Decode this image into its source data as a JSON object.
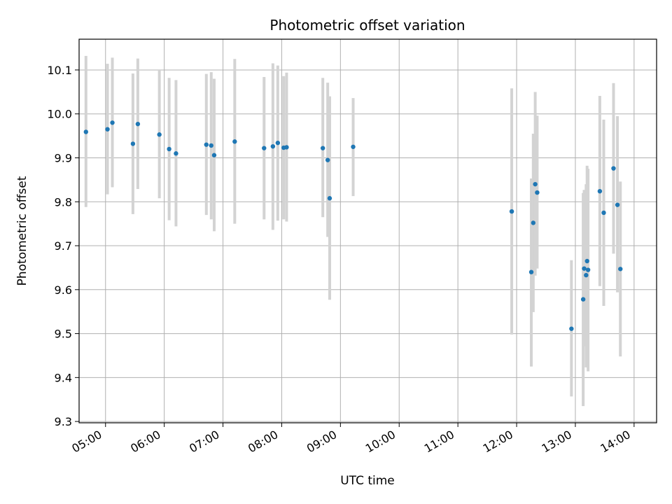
{
  "chart_data": {
    "type": "scatter",
    "title": "Photometric offset variation",
    "xlabel": "UTC time",
    "ylabel": "Photometric offset",
    "xlim": [
      "04:33",
      "14:23"
    ],
    "ylim": [
      9.297,
      10.17
    ],
    "grid": true,
    "x_ticks": [
      "05:00",
      "06:00",
      "07:00",
      "08:00",
      "09:00",
      "10:00",
      "11:00",
      "12:00",
      "13:00",
      "14:00"
    ],
    "y_ticks": [
      "9.3",
      "9.4",
      "9.5",
      "9.6",
      "9.7",
      "9.8",
      "9.9",
      "10.0",
      "10.1"
    ],
    "colors": {
      "point": "#1f77b4",
      "errorbar": "#d3d3d3",
      "grid": "#b0b0b0"
    },
    "points": [
      {
        "x": "04:40",
        "y": 9.959,
        "ylo": 9.788,
        "yhi": 10.132
      },
      {
        "x": "05:02",
        "y": 9.965,
        "ylo": 9.817,
        "yhi": 10.114
      },
      {
        "x": "05:07",
        "y": 9.98,
        "ylo": 9.833,
        "yhi": 10.128
      },
      {
        "x": "05:28",
        "y": 9.932,
        "ylo": 9.772,
        "yhi": 10.092
      },
      {
        "x": "05:33",
        "y": 9.977,
        "ylo": 9.829,
        "yhi": 10.126
      },
      {
        "x": "05:55",
        "y": 9.953,
        "ylo": 9.808,
        "yhi": 10.1
      },
      {
        "x": "06:05",
        "y": 9.92,
        "ylo": 9.758,
        "yhi": 10.082
      },
      {
        "x": "06:12",
        "y": 9.91,
        "ylo": 9.744,
        "yhi": 10.077
      },
      {
        "x": "06:43",
        "y": 9.93,
        "ylo": 9.77,
        "yhi": 10.091
      },
      {
        "x": "06:48",
        "y": 9.928,
        "ylo": 9.76,
        "yhi": 10.095
      },
      {
        "x": "06:51",
        "y": 9.906,
        "ylo": 9.733,
        "yhi": 10.08
      },
      {
        "x": "07:12",
        "y": 9.937,
        "ylo": 9.75,
        "yhi": 10.125
      },
      {
        "x": "07:42",
        "y": 9.922,
        "ylo": 9.76,
        "yhi": 10.084
      },
      {
        "x": "07:51",
        "y": 9.926,
        "ylo": 9.736,
        "yhi": 10.115
      },
      {
        "x": "07:56",
        "y": 9.934,
        "ylo": 9.757,
        "yhi": 10.11
      },
      {
        "x": "08:02",
        "y": 9.923,
        "ylo": 9.76,
        "yhi": 10.086
      },
      {
        "x": "08:05",
        "y": 9.924,
        "ylo": 9.755,
        "yhi": 10.094
      },
      {
        "x": "08:42",
        "y": 9.922,
        "ylo": 9.765,
        "yhi": 10.082
      },
      {
        "x": "08:47",
        "y": 9.895,
        "ylo": 9.72,
        "yhi": 10.071
      },
      {
        "x": "08:49",
        "y": 9.808,
        "ylo": 9.577,
        "yhi": 10.04
      },
      {
        "x": "09:13",
        "y": 9.925,
        "ylo": 9.813,
        "yhi": 10.036
      },
      {
        "x": "11:55",
        "y": 9.778,
        "ylo": 9.498,
        "yhi": 10.058
      },
      {
        "x": "12:15",
        "y": 9.64,
        "ylo": 9.425,
        "yhi": 9.853
      },
      {
        "x": "12:17",
        "y": 9.752,
        "ylo": 9.549,
        "yhi": 9.955
      },
      {
        "x": "12:19",
        "y": 9.84,
        "ylo": 9.632,
        "yhi": 10.05
      },
      {
        "x": "12:21",
        "y": 9.821,
        "ylo": 9.648,
        "yhi": 9.996
      },
      {
        "x": "12:56",
        "y": 9.511,
        "ylo": 9.357,
        "yhi": 9.667
      },
      {
        "x": "13:08",
        "y": 9.578,
        "ylo": 9.335,
        "yhi": 9.82
      },
      {
        "x": "13:09",
        "y": 9.648,
        "ylo": 9.471,
        "yhi": 9.827
      },
      {
        "x": "13:11",
        "y": 9.633,
        "ylo": 9.423,
        "yhi": 9.84
      },
      {
        "x": "13:12",
        "y": 9.665,
        "ylo": 9.448,
        "yhi": 9.882
      },
      {
        "x": "13:13",
        "y": 9.645,
        "ylo": 9.414,
        "yhi": 9.875
      },
      {
        "x": "13:25",
        "y": 9.824,
        "ylo": 9.608,
        "yhi": 10.041
      },
      {
        "x": "13:29",
        "y": 9.775,
        "ylo": 9.563,
        "yhi": 9.987
      },
      {
        "x": "13:39",
        "y": 9.876,
        "ylo": 9.682,
        "yhi": 10.07
      },
      {
        "x": "13:43",
        "y": 9.793,
        "ylo": 9.594,
        "yhi": 9.995
      },
      {
        "x": "13:46",
        "y": 9.647,
        "ylo": 9.448,
        "yhi": 9.846
      }
    ]
  }
}
